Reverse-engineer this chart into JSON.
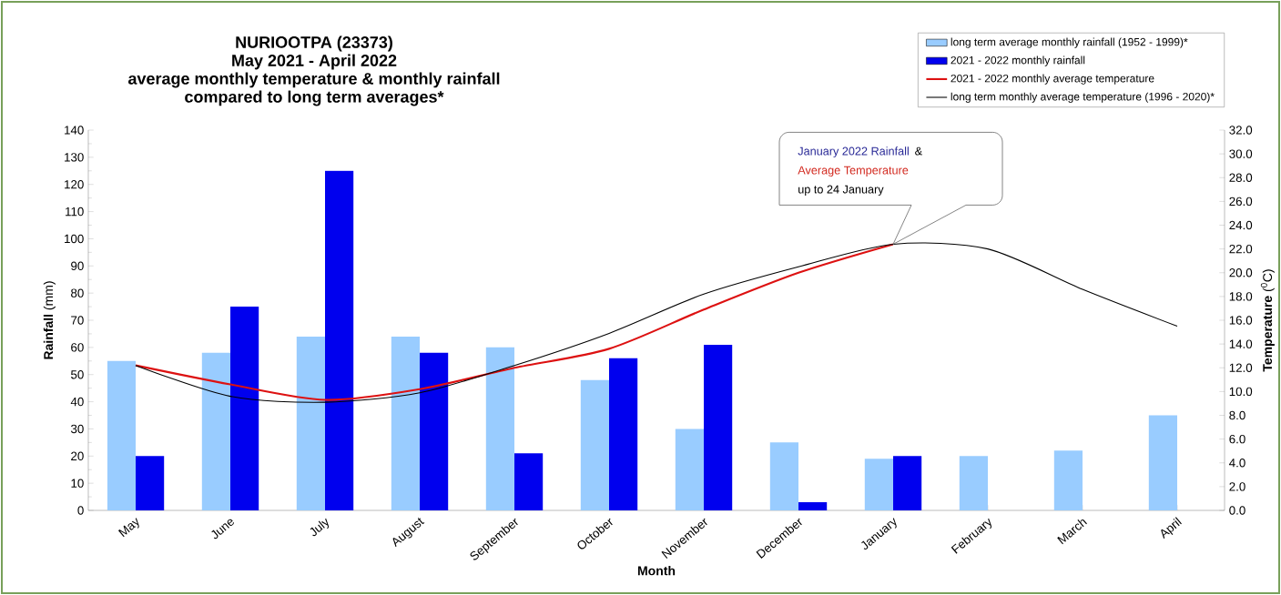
{
  "chart_data": {
    "type": "bar",
    "title": "NURIOOTPA (23373)",
    "subtitle": "May 2021 - April 2022",
    "xlabel": "Month",
    "ylabel": "**Rainfall** (mm)",
    "y2label": "**Temperature** ($^{0}$C)",
    "categories": [
      "May",
      "June",
      "July",
      "August",
      "September",
      "October",
      "November",
      "December",
      "January",
      "February",
      "March",
      "April"
    ],
    "series": [
      {
        "name": "long term average monthly rainfall (1952 - 1999)*",
        "color": "#99ccff",
        "values": [
          55,
          58,
          64,
          64,
          60,
          48,
          30,
          25,
          19,
          20,
          22,
          35
        ]
      },
      {
        "name": "2021 - 2022 monthly rainfall",
        "color": "#0000ee",
        "values": [
          20,
          75,
          125,
          58,
          21,
          56,
          61,
          3,
          20,
          null,
          null,
          null
        ]
      },
      {
        "name": "2021 - 2022 monthly average temperature",
        "type": "line",
        "axis": "y2",
        "color": "#dd1111",
        "values": [
          12.2,
          10.6,
          9.3,
          10.2,
          12.0,
          13.6,
          16.9,
          20.0,
          22.4,
          null,
          null,
          null
        ]
      },
      {
        "name": "long term monthly average temperature (1996 - 2020)*",
        "type": "line",
        "axis": "y2",
        "color": "#000000",
        "values": [
          12.2,
          9.6,
          9.1,
          9.9,
          12.2,
          14.9,
          18.2,
          20.5,
          22.4,
          22.0,
          18.6,
          15.5
        ]
      }
    ],
    "ylim": [
      0,
      140
    ],
    "yticks": [
      0,
      10,
      20,
      30,
      40,
      50,
      60,
      70,
      80,
      90,
      100,
      110,
      120,
      130,
      140
    ],
    "y2lim": [
      0,
      32
    ],
    "y2ticks": [
      {
        "value": 0,
        "label": "0.0"
      },
      {
        "value": 2,
        "label": "2.0"
      },
      {
        "value": 4,
        "label": "4.0"
      },
      {
        "value": 6,
        "label": "6.0"
      },
      {
        "value": 8,
        "label": "8.0"
      },
      {
        "value": 10,
        "label": "10.0"
      },
      {
        "value": 12,
        "label": "12.0"
      },
      {
        "value": 14,
        "label": "14.0"
      },
      {
        "value": 16,
        "label": "16.0"
      },
      {
        "value": 18,
        "label": "18.0"
      },
      {
        "value": 20,
        "label": "20.0"
      },
      {
        "value": 22,
        "label": "22.0"
      },
      {
        "value": 24,
        "label": "24.0"
      },
      {
        "value": 26,
        "label": "26.0"
      },
      {
        "value": 28,
        "label": "28.0"
      },
      {
        "value": 30,
        "label": "30.0"
      },
      {
        "value": 32,
        "label": "32.0"
      }
    ],
    "legend": "top right",
    "annotations": [
      "average monthly temperature & monthly rainfall",
      "compared to long term averages*",
      "January 2022 Rainfall",
      "&",
      "Average Temperature",
      "up to 24 January"
    ]
  }
}
